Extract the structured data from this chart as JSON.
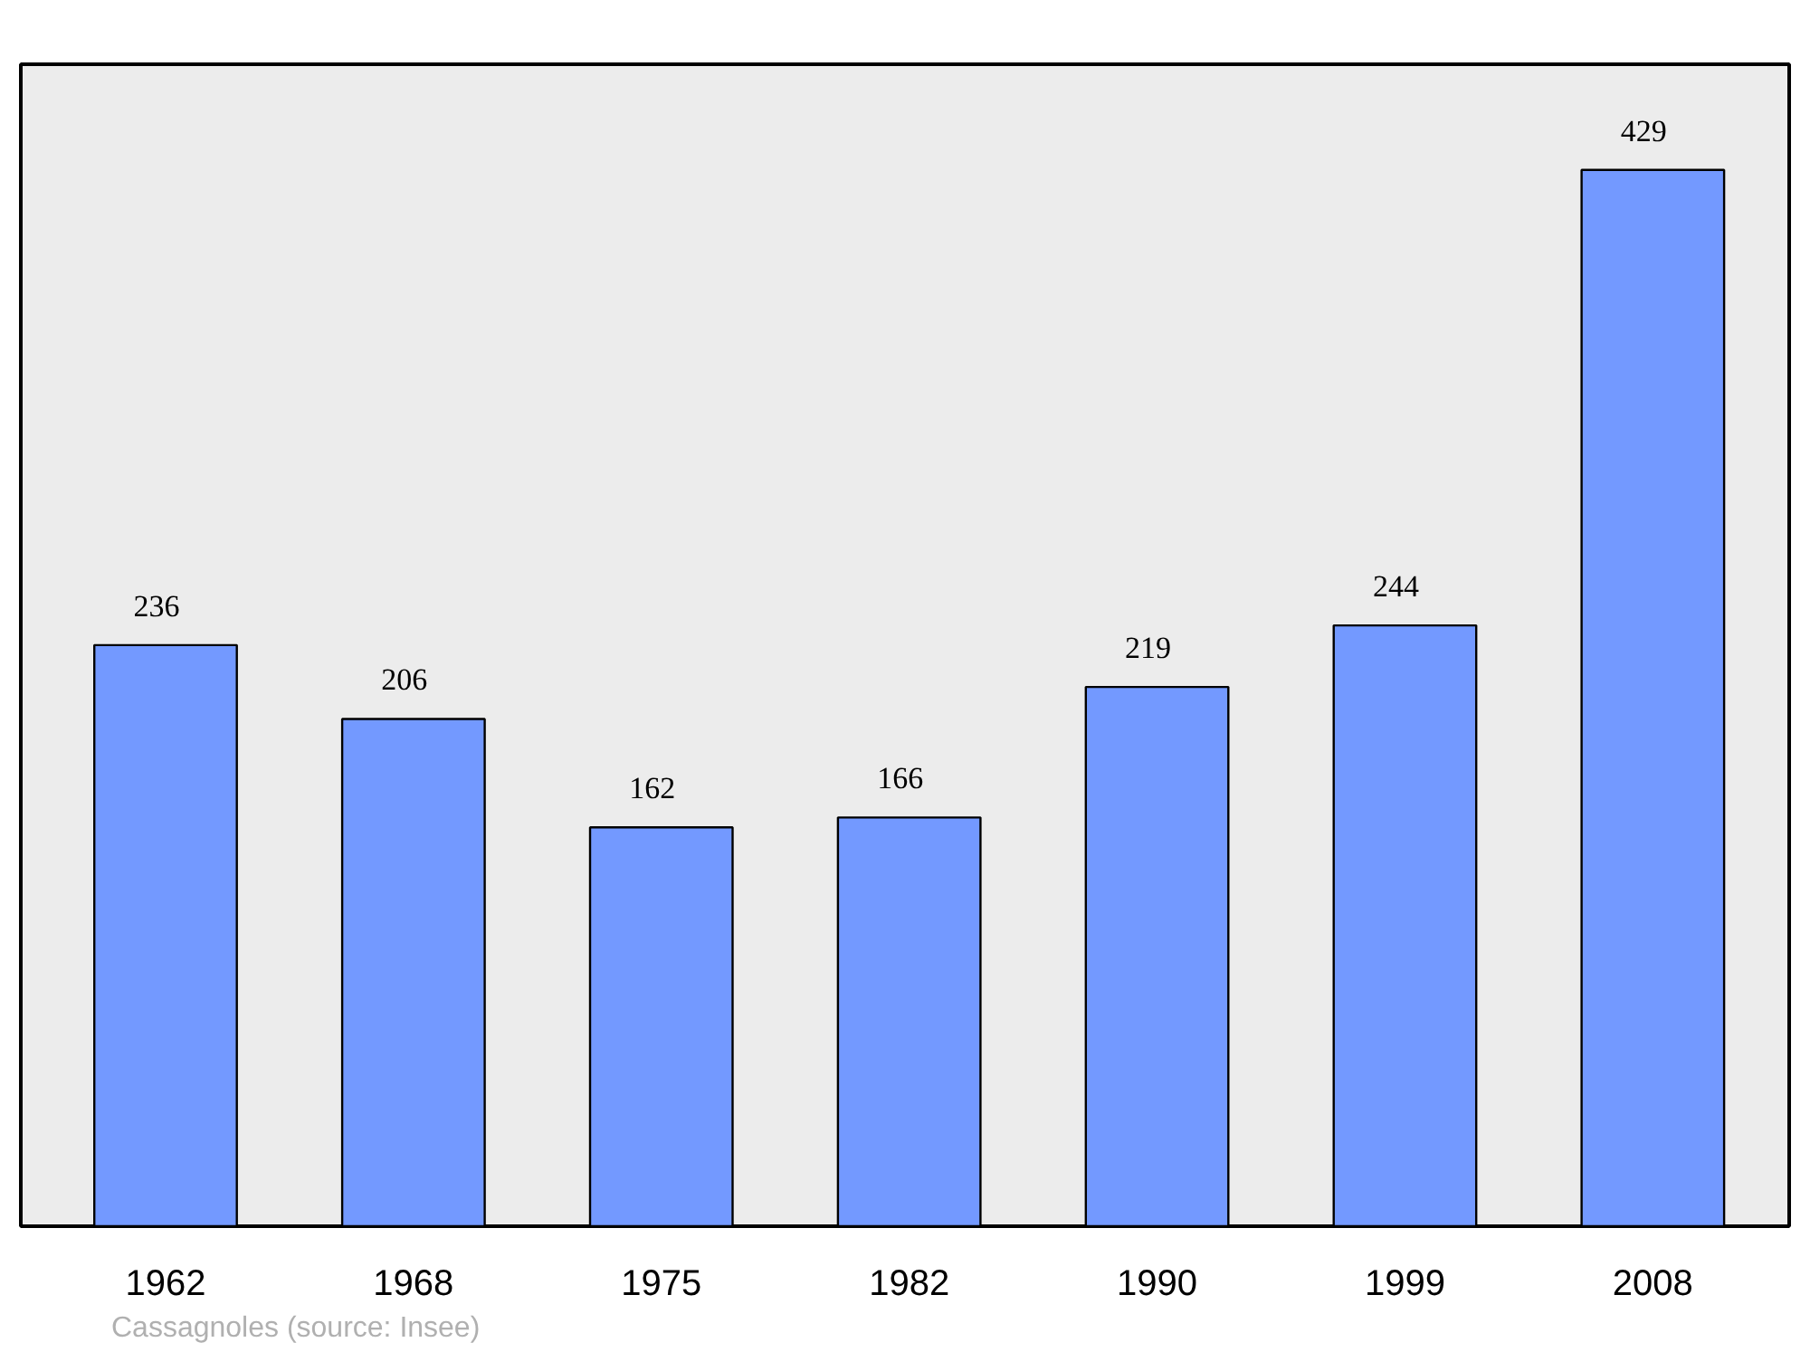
{
  "chart_data": {
    "type": "bar",
    "categories": [
      "1962",
      "1968",
      "1975",
      "1982",
      "1990",
      "1999",
      "2008"
    ],
    "values": [
      236,
      206,
      162,
      166,
      219,
      244,
      429
    ],
    "color": "#7399ff",
    "data_labels": true,
    "grid": false,
    "annotations": [
      "Cassagnoles    (source: Insee)"
    ]
  }
}
